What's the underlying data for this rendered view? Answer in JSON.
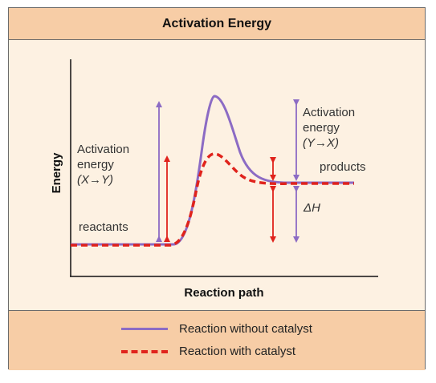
{
  "title": "Activation Energy",
  "axes": {
    "y_label": "Energy",
    "x_label": "Reaction path"
  },
  "labels": {
    "reactants": "reactants",
    "products": "products",
    "delta_h": "ΔH",
    "activation_forward": [
      "Activation",
      "energy",
      "(X→Y)"
    ],
    "activation_reverse": [
      "Activation",
      "energy",
      "(Y→X)"
    ]
  },
  "legend": {
    "without_catalyst": "Reaction without catalyst",
    "with_catalyst": "Reaction with catalyst"
  },
  "colors": {
    "without_catalyst": "#8c6bc4",
    "with_catalyst": "#e0231c",
    "title_bar": "#f7cda6",
    "panel": "#fdf1e2"
  }
}
